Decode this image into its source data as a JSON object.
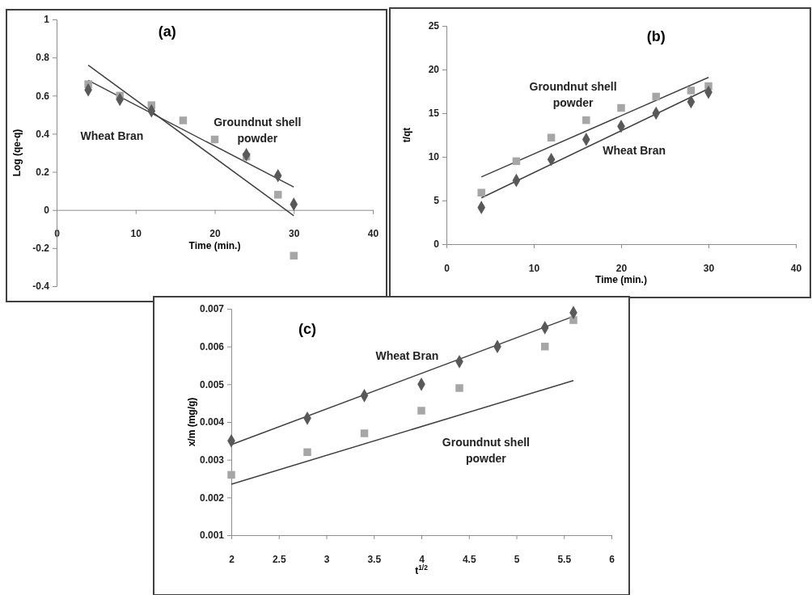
{
  "chart_data": [
    {
      "type": "scatter",
      "title": "(a)",
      "xlabel": "Time (min.)",
      "ylabel": "Log (qe-q)",
      "xlim": [
        0,
        40
      ],
      "xticks": [
        0,
        10,
        20,
        30,
        40
      ],
      "ylim": [
        -0.4,
        1
      ],
      "yticks": [
        -0.4,
        -0.2,
        0,
        0.2,
        0.4,
        0.6,
        0.8,
        1
      ],
      "series": [
        {
          "name": "Wheat Bran",
          "marker": "diamond",
          "color": "#595959",
          "x": [
            4,
            8,
            12,
            16,
            20,
            24,
            28,
            30
          ],
          "values": [
            0.63,
            0.58,
            0.52,
            null,
            null,
            0.29,
            0.18,
            0.03
          ]
        },
        {
          "name": "Groundnut shell powder",
          "marker": "square",
          "color": "#a6a6a6",
          "x": [
            4,
            8,
            12,
            16,
            20,
            24,
            28,
            30
          ],
          "values": [
            0.66,
            0.6,
            0.55,
            0.47,
            0.37,
            0.28,
            0.08,
            -0.24
          ]
        },
        {
          "type": "line",
          "line_style": "solid",
          "color": "#404040",
          "x": [
            4,
            30
          ],
          "values": [
            0.68,
            0.12
          ]
        },
        {
          "type": "line",
          "line_style": "solid",
          "color": "#404040",
          "x": [
            4,
            30
          ],
          "values": [
            0.76,
            -0.03
          ]
        }
      ]
    },
    {
      "type": "scatter",
      "title": "(b)",
      "xlabel": "Time (min.)",
      "ylabel": "t/qt",
      "xlim": [
        0,
        40
      ],
      "xticks": [
        0,
        10,
        20,
        30,
        40
      ],
      "ylim": [
        0,
        25
      ],
      "yticks": [
        0,
        5,
        10,
        15,
        20,
        25
      ],
      "series": [
        {
          "name": "Wheat Bran",
          "marker": "diamond",
          "color": "#595959",
          "x": [
            4,
            8,
            12,
            16,
            20,
            24,
            28,
            30
          ],
          "values": [
            4.2,
            7.3,
            9.7,
            12,
            13.5,
            15,
            16.3,
            17.4
          ]
        },
        {
          "name": "Groundnut shell powder",
          "marker": "square",
          "color": "#a6a6a6",
          "x": [
            4,
            8,
            12,
            16,
            20,
            24,
            28,
            30
          ],
          "values": [
            5.9,
            9.5,
            12.2,
            14.2,
            15.6,
            16.9,
            17.6,
            18.1
          ]
        },
        {
          "type": "line",
          "line_style": "solid",
          "color": "#404040",
          "x": [
            4,
            30
          ],
          "values": [
            5.3,
            17.8
          ]
        },
        {
          "type": "line",
          "line_style": "solid",
          "color": "#404040",
          "x": [
            4,
            30
          ],
          "values": [
            7.7,
            19.1
          ]
        }
      ]
    },
    {
      "type": "scatter",
      "title": "(c)",
      "xlabel": "t$^{1/2}$",
      "ylabel": "x/m (mg/g)",
      "xlim": [
        2,
        6
      ],
      "xticks": [
        2,
        2.5,
        3,
        3.5,
        4,
        4.5,
        5,
        5.5,
        6
      ],
      "ylim": [
        0.001,
        0.007
      ],
      "yticks": [
        0.001,
        0.002,
        0.003,
        0.004,
        0.005,
        0.006,
        0.007
      ],
      "series": [
        {
          "name": "Wheat Bran",
          "marker": "diamond",
          "color": "#595959",
          "x": [
            2,
            2.8,
            3.4,
            4,
            4.4,
            4.8,
            5.3,
            5.6
          ],
          "values": [
            0.0035,
            0.0041,
            0.0047,
            0.005,
            0.0056,
            0.006,
            0.0065,
            0.0069
          ]
        },
        {
          "name": "Groundnut shell powder",
          "marker": "square",
          "color": "#a6a6a6",
          "x": [
            2,
            2.8,
            3.4,
            4,
            4.4,
            5.3,
            5.6
          ],
          "values": [
            0.0026,
            0.0032,
            0.0037,
            0.0043,
            0.0049,
            0.006,
            0.0067
          ]
        },
        {
          "type": "line",
          "line_style": "solid",
          "color": "#404040",
          "x": [
            2,
            5.6
          ],
          "values": [
            0.0034,
            0.0068
          ]
        },
        {
          "type": "line",
          "line_style": "solid",
          "color": "#404040",
          "x": [
            2,
            5.6
          ],
          "values": [
            0.00235,
            0.0051
          ]
        }
      ]
    }
  ]
}
